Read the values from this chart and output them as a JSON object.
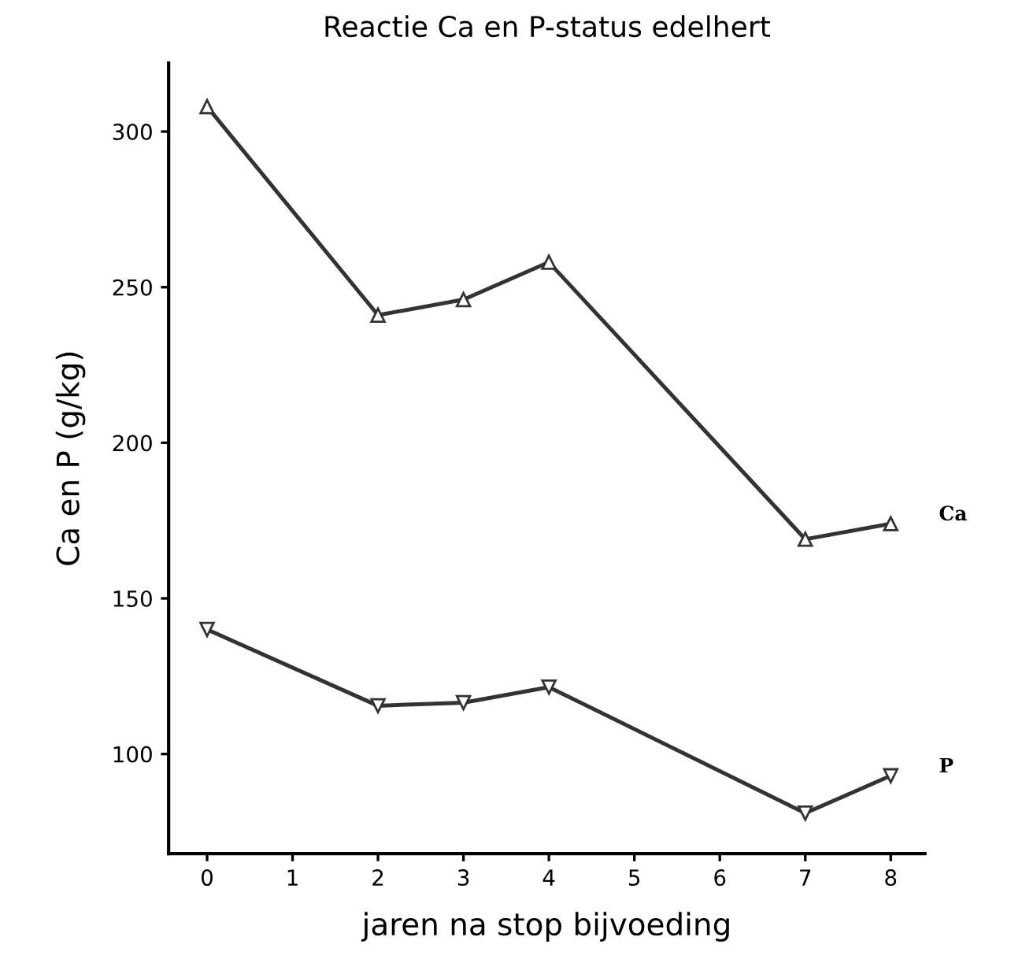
{
  "chart_data": {
    "type": "line",
    "title": "Reactie Ca en P-status edelhert",
    "xlabel": "jaren na stop bijvoeding",
    "ylabel": "Ca en P (g/kg)",
    "x": [
      0,
      2,
      3,
      4,
      7,
      8
    ],
    "series": [
      {
        "name": "Ca",
        "color": "#333333",
        "marker": "triangle",
        "values": [
          308,
          241,
          246,
          258,
          169,
          174
        ]
      },
      {
        "name": "P",
        "color": "#333333",
        "marker": "triangle_down",
        "values": [
          140,
          115.5,
          116.5,
          121.5,
          81,
          93
        ]
      }
    ],
    "xlim": [
      -0.45,
      8.4
    ],
    "xticks": [
      0,
      1,
      2,
      3,
      4,
      5,
      6,
      7,
      8
    ],
    "ylim": [
      68,
      322
    ],
    "yticks": [
      100,
      150,
      200,
      250,
      300
    ],
    "grid": false,
    "legend": false,
    "line_style": "solid"
  }
}
